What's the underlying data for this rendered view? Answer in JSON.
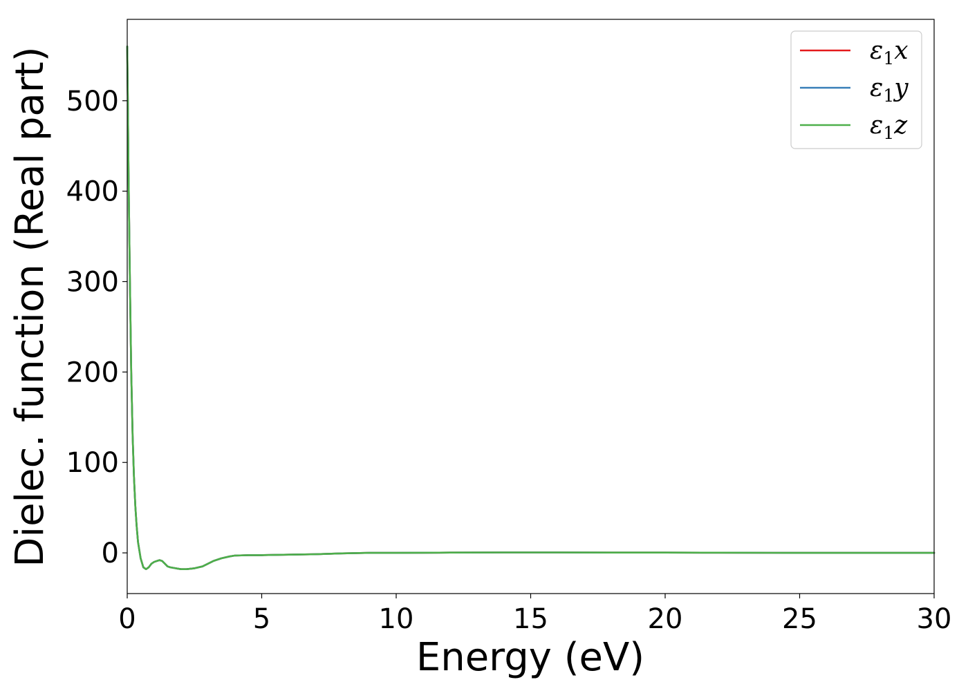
{
  "chart_data": {
    "type": "line",
    "title": "",
    "xlabel": "Energy (eV)",
    "ylabel": "Dielec. function (Real part)",
    "xlim": [
      0,
      30
    ],
    "ylim": [
      -45,
      590
    ],
    "xticks": [
      0,
      5,
      10,
      15,
      20,
      25,
      30
    ],
    "yticks": [
      0,
      100,
      200,
      300,
      400,
      500
    ],
    "xtick_labels": [
      "0",
      "5",
      "10",
      "15",
      "20",
      "25",
      "30"
    ],
    "ytick_labels": [
      "0",
      "100",
      "200",
      "300",
      "400",
      "500"
    ],
    "grid": false,
    "legend_position": "top-right",
    "series": [
      {
        "name": "ε₁x",
        "name_base": "ε",
        "name_sub": "1",
        "name_var": "x",
        "color": "#e41a1c",
        "x": [
          0,
          0.02,
          0.05,
          0.1,
          0.15,
          0.2,
          0.25,
          0.3,
          0.35,
          0.4,
          0.5,
          0.6,
          0.7,
          0.8,
          0.9,
          1.0,
          1.1,
          1.2,
          1.3,
          1.4,
          1.5,
          1.6,
          1.8,
          2.0,
          2.2,
          2.5,
          2.8,
          3.0,
          3.2,
          3.5,
          3.8,
          4.0,
          4.5,
          5.0,
          6.0,
          7.0,
          8.0,
          9.0,
          10.0,
          12.0,
          14.0,
          16.0,
          18.0,
          20.0,
          22.0,
          24.0,
          26.0,
          28.0,
          30.0
        ],
        "y": [
          560,
          505,
          420,
          300,
          200,
          130,
          85,
          52,
          30,
          12,
          -6,
          -16,
          -18,
          -16,
          -12,
          -10,
          -9,
          -8,
          -9,
          -12,
          -15,
          -16,
          -17,
          -18,
          -18,
          -17,
          -15,
          -12,
          -9,
          -6,
          -4,
          -3,
          -2.5,
          -2.5,
          -2,
          -1.5,
          -0.5,
          0,
          0,
          0.3,
          0.5,
          0.5,
          0.3,
          0.3,
          0.2,
          0.1,
          0,
          0,
          0
        ]
      },
      {
        "name": "ε₁y",
        "name_base": "ε",
        "name_sub": "1",
        "name_var": "y",
        "color": "#377eb8",
        "x": [
          0,
          0.02,
          0.05,
          0.1,
          0.15,
          0.2,
          0.25,
          0.3,
          0.35,
          0.4,
          0.5,
          0.6,
          0.7,
          0.8,
          0.9,
          1.0,
          1.1,
          1.2,
          1.3,
          1.4,
          1.5,
          1.6,
          1.8,
          2.0,
          2.2,
          2.5,
          2.8,
          3.0,
          3.2,
          3.5,
          3.8,
          4.0,
          4.5,
          5.0,
          6.0,
          7.0,
          8.0,
          9.0,
          10.0,
          12.0,
          14.0,
          16.0,
          18.0,
          20.0,
          22.0,
          24.0,
          26.0,
          28.0,
          30.0
        ],
        "y": [
          560,
          505,
          420,
          300,
          200,
          130,
          85,
          52,
          30,
          12,
          -6,
          -16,
          -18,
          -16,
          -12,
          -10,
          -9,
          -8,
          -9,
          -12,
          -15,
          -16,
          -17,
          -18,
          -18,
          -17,
          -15,
          -12,
          -9,
          -6,
          -4,
          -3,
          -2.5,
          -2.5,
          -2,
          -1.5,
          -0.5,
          0,
          0,
          0.3,
          0.5,
          0.5,
          0.3,
          0.3,
          0.2,
          0.1,
          0,
          0,
          0
        ]
      },
      {
        "name": "ε₁z",
        "name_base": "ε",
        "name_sub": "1",
        "name_var": "z",
        "color": "#4daf4a",
        "x": [
          0,
          0.02,
          0.05,
          0.1,
          0.15,
          0.2,
          0.25,
          0.3,
          0.35,
          0.4,
          0.5,
          0.6,
          0.7,
          0.8,
          0.9,
          1.0,
          1.1,
          1.2,
          1.3,
          1.4,
          1.5,
          1.6,
          1.8,
          2.0,
          2.2,
          2.5,
          2.8,
          3.0,
          3.2,
          3.5,
          3.8,
          4.0,
          4.5,
          5.0,
          6.0,
          7.0,
          8.0,
          9.0,
          10.0,
          12.0,
          14.0,
          16.0,
          18.0,
          20.0,
          22.0,
          24.0,
          26.0,
          28.0,
          30.0
        ],
        "y": [
          560,
          505,
          420,
          300,
          200,
          130,
          85,
          52,
          30,
          12,
          -6,
          -16,
          -18,
          -16,
          -12,
          -10,
          -9,
          -8,
          -9,
          -12,
          -15,
          -16,
          -17,
          -18,
          -18,
          -17,
          -15,
          -12,
          -9,
          -6,
          -4,
          -3,
          -2.5,
          -2.5,
          -2,
          -1.5,
          -0.5,
          0,
          0,
          0.3,
          0.5,
          0.5,
          0.3,
          0.3,
          0.2,
          0.1,
          0,
          0,
          0
        ]
      }
    ]
  }
}
